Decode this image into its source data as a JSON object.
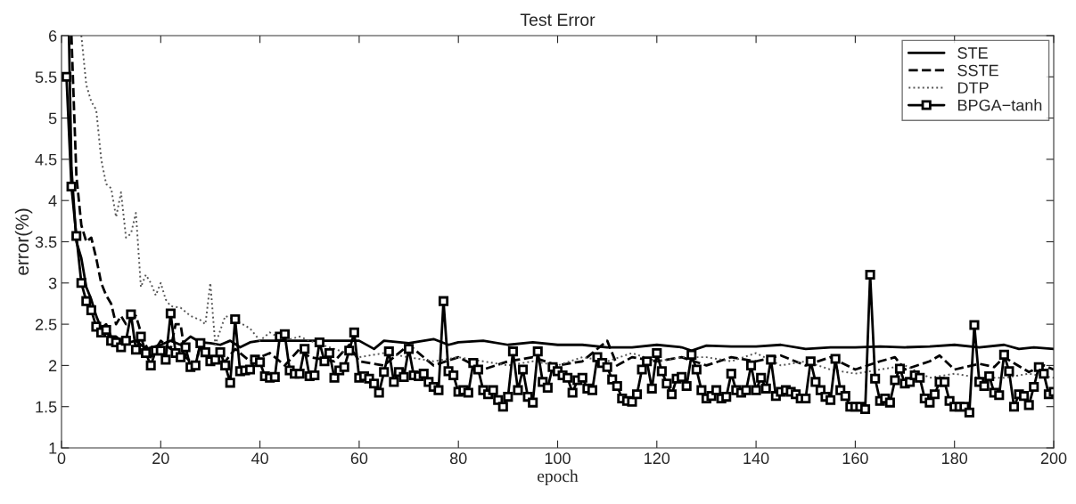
{
  "chart_data": {
    "type": "line",
    "title": "Test Error",
    "xlabel": "epoch",
    "ylabel": "error(%)",
    "xlim": [
      0,
      200
    ],
    "xticks": [
      0,
      20,
      40,
      60,
      80,
      100,
      120,
      140,
      160,
      180,
      200
    ],
    "ylim": [
      1,
      6
    ],
    "yticks": [
      1,
      1.5,
      2,
      2.5,
      3,
      3.5,
      4,
      4.5,
      5,
      5.5,
      6
    ],
    "grid": false,
    "legend": "top right",
    "series": [
      {
        "name": "STE",
        "color": "#000000",
        "line_style": "solid",
        "marker": "none",
        "x": [
          1.5,
          2,
          3,
          4,
          5,
          6,
          7,
          8,
          9,
          10,
          11,
          12,
          13,
          15,
          17,
          20,
          22,
          24,
          26,
          28,
          30,
          32,
          34,
          36,
          38,
          40,
          45,
          50,
          55,
          60,
          63,
          65,
          70,
          75,
          78,
          80,
          85,
          90,
          95,
          100,
          105,
          110,
          115,
          120,
          125,
          127,
          130,
          135,
          140,
          145,
          150,
          155,
          160,
          165,
          170,
          175,
          180,
          185,
          190,
          193,
          196,
          200
        ],
        "values": [
          6.0,
          4.4,
          3.5,
          3.3,
          2.95,
          2.8,
          2.6,
          2.45,
          2.5,
          2.35,
          2.35,
          2.3,
          2.27,
          2.3,
          2.2,
          2.25,
          2.3,
          2.25,
          2.35,
          2.28,
          2.27,
          2.25,
          2.3,
          2.22,
          2.28,
          2.3,
          2.3,
          2.3,
          2.3,
          2.3,
          2.2,
          2.3,
          2.27,
          2.32,
          2.25,
          2.28,
          2.3,
          2.25,
          2.28,
          2.25,
          2.25,
          2.22,
          2.22,
          2.25,
          2.22,
          2.18,
          2.24,
          2.23,
          2.23,
          2.25,
          2.2,
          2.22,
          2.22,
          2.23,
          2.22,
          2.23,
          2.25,
          2.22,
          2.25,
          2.2,
          2.22,
          2.2
        ]
      },
      {
        "name": "SSTE",
        "color": "#000000",
        "line_style": "dashed",
        "marker": "none",
        "x": [
          2,
          3,
          4,
          5,
          6,
          7,
          8,
          9,
          10,
          11,
          12,
          13,
          14,
          15,
          16,
          17,
          18,
          20,
          21,
          22,
          23,
          24,
          25,
          27,
          28,
          30,
          33,
          35,
          38,
          40,
          42,
          45,
          48,
          50,
          55,
          58,
          60,
          65,
          70,
          75,
          80,
          85,
          90,
          95,
          100,
          105,
          110,
          112,
          115,
          120,
          125,
          130,
          135,
          140,
          145,
          150,
          155,
          160,
          165,
          168,
          170,
          175,
          177,
          180,
          185,
          188,
          190,
          195,
          198,
          200
        ],
        "values": [
          6.0,
          4.3,
          3.7,
          3.5,
          3.55,
          3.3,
          3.0,
          2.85,
          2.75,
          2.5,
          2.6,
          2.5,
          2.55,
          2.6,
          2.4,
          2.25,
          2.1,
          2.3,
          2.25,
          2.2,
          2.5,
          2.5,
          2.1,
          2.0,
          2.25,
          2.1,
          2.05,
          2.2,
          2.05,
          2.1,
          2.15,
          2.0,
          2.2,
          2.1,
          2.05,
          2.25,
          2.05,
          2.0,
          2.25,
          2.0,
          2.1,
          1.95,
          2.05,
          2.1,
          2.0,
          2.05,
          2.3,
          2.0,
          2.1,
          2.05,
          2.1,
          2.0,
          2.1,
          2.05,
          2.12,
          2.0,
          2.1,
          1.95,
          2.05,
          2.1,
          1.95,
          2.05,
          2.12,
          1.95,
          2.02,
          1.98,
          2.1,
          1.92,
          2.0,
          1.95
        ]
      },
      {
        "name": "DTP",
        "color": "#555555",
        "line_style": "dotted",
        "marker": "none",
        "x": [
          4,
          5,
          6,
          7,
          8,
          9,
          10,
          11,
          12,
          13,
          14,
          15,
          16,
          17,
          18,
          19,
          20,
          21,
          22,
          24,
          26,
          28,
          29,
          30,
          31,
          33,
          35,
          38,
          40,
          42,
          45,
          48,
          50,
          55,
          60,
          65,
          70,
          75,
          80,
          85,
          90,
          95,
          100,
          105,
          110,
          115,
          120,
          125,
          130,
          135,
          140,
          145,
          150,
          155,
          160,
          165,
          170,
          175,
          180,
          185,
          190,
          195,
          200
        ],
        "values": [
          6.0,
          5.4,
          5.2,
          5.1,
          4.5,
          4.2,
          4.15,
          3.8,
          4.1,
          3.55,
          3.6,
          3.85,
          2.95,
          3.1,
          3.0,
          2.85,
          3.0,
          2.8,
          2.72,
          2.7,
          2.6,
          2.55,
          2.5,
          3.0,
          2.25,
          2.6,
          2.55,
          2.45,
          2.3,
          2.4,
          2.3,
          2.35,
          2.3,
          2.2,
          2.1,
          2.15,
          2.1,
          2.05,
          2.1,
          2.05,
          2.0,
          2.05,
          2.0,
          2.1,
          2.05,
          2.15,
          2.05,
          2.1,
          2.1,
          2.05,
          2.15,
          2.0,
          2.05,
          1.95,
          1.9,
          1.95,
          2.0,
          1.85,
          1.9,
          1.85,
          1.85,
          1.9,
          1.85
        ]
      },
      {
        "name": "BPGA−tanh",
        "color": "#000000",
        "line_style": "solid",
        "marker": "square",
        "x": [
          1,
          2,
          3,
          4,
          5,
          6,
          7,
          8,
          9,
          10,
          11,
          12,
          13,
          14,
          15,
          16,
          17,
          18,
          19,
          20,
          21,
          22,
          23,
          24,
          25,
          26,
          27,
          28,
          29,
          30,
          31,
          32,
          33,
          34,
          35,
          36,
          37,
          38,
          39,
          40,
          41,
          42,
          43,
          44,
          45,
          46,
          47,
          48,
          49,
          50,
          51,
          52,
          53,
          54,
          55,
          56,
          57,
          58,
          59,
          60,
          61,
          62,
          63,
          64,
          65,
          66,
          67,
          68,
          69,
          70,
          71,
          72,
          73,
          74,
          75,
          76,
          77,
          78,
          79,
          80,
          81,
          82,
          83,
          84,
          85,
          86,
          87,
          88,
          89,
          90,
          91,
          92,
          93,
          94,
          95,
          96,
          97,
          98,
          99,
          100,
          101,
          102,
          103,
          104,
          105,
          106,
          107,
          108,
          109,
          110,
          111,
          112,
          113,
          114,
          115,
          116,
          117,
          118,
          119,
          120,
          121,
          122,
          123,
          124,
          125,
          126,
          127,
          128,
          129,
          130,
          131,
          132,
          133,
          134,
          135,
          136,
          137,
          138,
          139,
          140,
          141,
          142,
          143,
          144,
          145,
          146,
          147,
          148,
          149,
          150,
          151,
          152,
          153,
          154,
          155,
          156,
          157,
          158,
          159,
          160,
          161,
          162,
          163,
          164,
          165,
          166,
          167,
          168,
          169,
          170,
          171,
          172,
          173,
          174,
          175,
          176,
          177,
          178,
          179,
          180,
          181,
          182,
          183,
          184,
          185,
          186,
          187,
          188,
          189,
          190,
          191,
          192,
          193,
          194,
          195,
          196,
          197,
          198,
          199,
          200
        ],
        "values": [
          5.5,
          4.17,
          3.57,
          3.0,
          2.78,
          2.67,
          2.47,
          2.4,
          2.43,
          2.3,
          2.28,
          2.22,
          2.3,
          2.62,
          2.19,
          2.35,
          2.15,
          2.0,
          2.18,
          2.18,
          2.07,
          2.63,
          2.15,
          2.1,
          2.22,
          1.98,
          2.0,
          2.27,
          2.16,
          2.05,
          2.07,
          2.16,
          2.0,
          1.79,
          2.56,
          1.93,
          1.94,
          1.95,
          2.07,
          2.04,
          1.87,
          1.85,
          1.86,
          2.35,
          2.38,
          1.94,
          1.9,
          1.9,
          2.2,
          1.87,
          1.88,
          2.28,
          2.05,
          2.15,
          1.85,
          1.94,
          1.98,
          2.18,
          2.4,
          1.85,
          1.87,
          1.84,
          1.78,
          1.67,
          1.92,
          2.17,
          1.8,
          1.92,
          1.86,
          2.2,
          1.88,
          1.87,
          1.9,
          1.8,
          1.74,
          1.7,
          2.78,
          1.93,
          1.88,
          1.68,
          1.7,
          1.67,
          2.03,
          1.95,
          1.7,
          1.65,
          1.7,
          1.58,
          1.5,
          1.62,
          2.17,
          1.7,
          1.95,
          1.62,
          1.55,
          2.17,
          1.8,
          1.73,
          1.98,
          1.93,
          1.88,
          1.85,
          1.67,
          1.82,
          1.85,
          1.72,
          1.7,
          2.1,
          2.03,
          1.98,
          1.83,
          1.75,
          1.6,
          1.57,
          1.56,
          1.65,
          1.95,
          2.05,
          1.72,
          2.15,
          1.93,
          1.78,
          1.65,
          1.84,
          1.86,
          1.75,
          2.13,
          1.95,
          1.7,
          1.6,
          1.63,
          1.7,
          1.6,
          1.62,
          1.9,
          1.7,
          1.67,
          1.7,
          2.0,
          1.7,
          1.85,
          1.72,
          2.07,
          1.63,
          1.68,
          1.7,
          1.68,
          1.65,
          1.6,
          1.6,
          2.05,
          1.8,
          1.7,
          1.62,
          1.58,
          2.08,
          1.7,
          1.63,
          1.5,
          1.5,
          1.5,
          1.47,
          3.1,
          1.84,
          1.57,
          1.6,
          1.55,
          1.82,
          1.96,
          1.78,
          1.8,
          1.88,
          1.85,
          1.6,
          1.55,
          1.65,
          1.8,
          1.8,
          1.57,
          1.5,
          1.5,
          1.5,
          1.43,
          2.49,
          1.8,
          1.75,
          1.87,
          1.67,
          1.64,
          2.13,
          1.93,
          1.5,
          1.65,
          1.63,
          1.52,
          1.74,
          1.98,
          1.9,
          1.65,
          1.68
        ]
      }
    ]
  }
}
